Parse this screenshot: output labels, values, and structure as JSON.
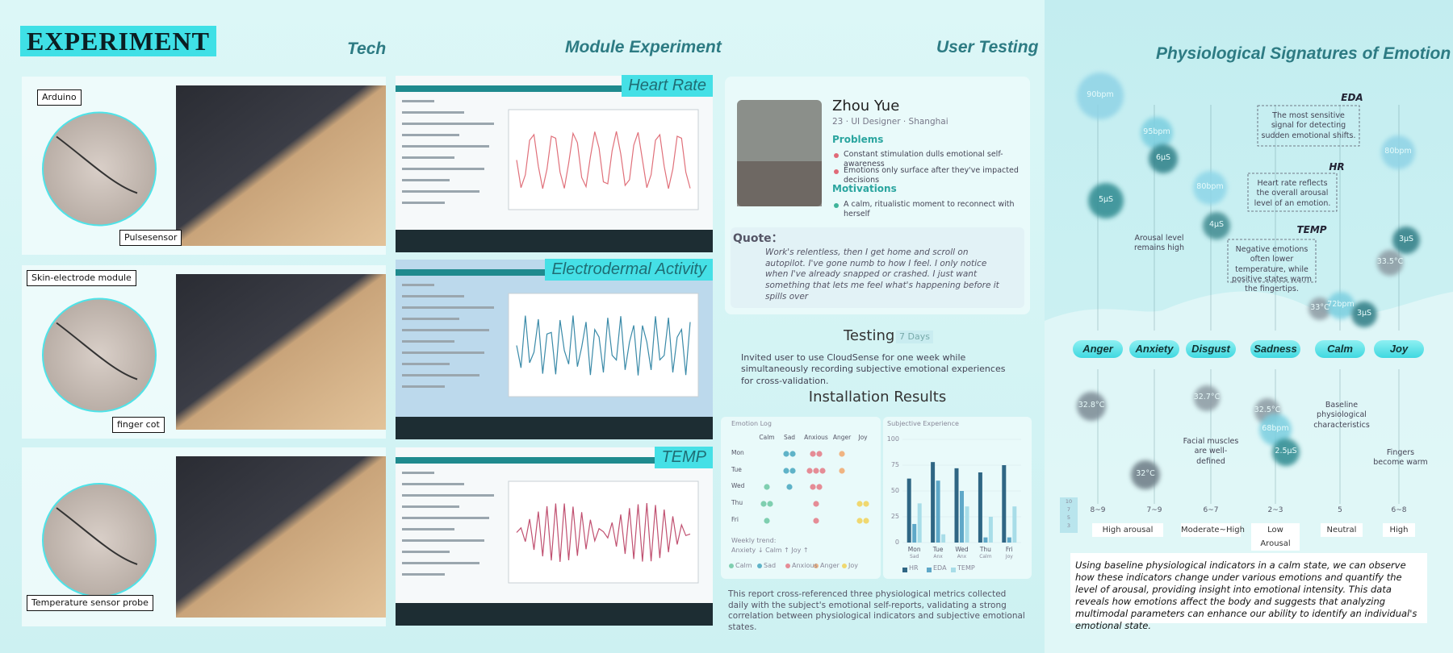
{
  "header": {
    "title": "EXPERIMENT",
    "sections": [
      "Tech",
      "Module Experiment",
      "User Testing",
      "Physiological Signatures of Emotion"
    ]
  },
  "tech": {
    "rows": [
      {
        "labels": [
          "Arduino",
          "Pulsesensor"
        ],
        "module": "Heart Rate"
      },
      {
        "labels": [
          "Skin-electrode module",
          "finger cot"
        ],
        "module": "Electrodermal Activity"
      },
      {
        "labels": [
          "Temperature sensor probe"
        ],
        "module": "TEMP"
      }
    ]
  },
  "user": {
    "name": "Zhou Yue",
    "info": "23 · UI Designer · Shanghai",
    "problems_title": "Problems",
    "problems": [
      "Constant stimulation dulls emotional self-awareness",
      "Emotions only surface after they've impacted decisions"
    ],
    "motivations_title": "Motivations",
    "motivations": [
      "A calm, ritualistic moment to reconnect with herself"
    ],
    "quote_title": "Quote：",
    "quote": "Work's relentless, then I get home and scroll on autopilot. I've gone numb to how I feel. I only notice when I've already snapped or crashed. I just want something that lets me feel what's happening before it spills over"
  },
  "testing": {
    "title": "Testing",
    "duration": "7 Days",
    "description": "Invited user to use CloudSense for one week while simultaneously recording subjective emotional experiences for cross-validation."
  },
  "results": {
    "title": "Installation Results",
    "emotion_log": {
      "title": "Emotion Log",
      "columns": [
        "Calm",
        "Sad",
        "Anxious",
        "Anger",
        "Joy"
      ],
      "colors": [
        "#7fcfb0",
        "#5fb3c8",
        "#e58c96",
        "#f0b482",
        "#f0d870"
      ],
      "rows": [
        "Mon",
        "Tue",
        "Wed",
        "Thu",
        "Fri"
      ],
      "counts": [
        [
          0,
          2,
          2,
          1,
          0
        ],
        [
          0,
          2,
          3,
          1,
          0
        ],
        [
          1,
          1,
          2,
          0,
          0
        ],
        [
          2,
          0,
          1,
          0,
          2
        ],
        [
          1,
          0,
          1,
          0,
          2
        ]
      ],
      "trend_title": "Weekly trend:",
      "trend": "Anxiety ↓ Calm ↑ Joy ↑"
    },
    "subjective": {
      "title": "Subjective Experience",
      "categories": [
        "Mon",
        "Tue",
        "Wed",
        "Thu",
        "Fri"
      ],
      "sublabels": [
        "Sad",
        "Anx",
        "Anx",
        "Calm",
        "Joy"
      ],
      "ylim": [
        0,
        100
      ],
      "yticks": [
        0,
        25,
        50,
        75,
        100
      ],
      "series": [
        {
          "name": "HR",
          "color": "#2f6684",
          "values": [
            62,
            78,
            72,
            68,
            75
          ]
        },
        {
          "name": "EDA",
          "color": "#5fa8c8",
          "values": [
            18,
            60,
            50,
            5,
            5
          ]
        },
        {
          "name": "TEMP",
          "color": "#a8dde8",
          "values": [
            38,
            8,
            35,
            25,
            35
          ]
        }
      ]
    },
    "report": "This report cross-referenced three physiological metrics collected daily with the subject's emotional self-reports, validating a strong correlation between physiological indicators and subjective emotional states."
  },
  "signatures": {
    "bubbles": [
      "90bpm",
      "5μS",
      "95bpm",
      "6μS",
      "80bpm",
      "4μS",
      "80bpm",
      "3μS",
      "33.5°C",
      "33°C",
      "72bpm",
      "3μS",
      "32.8°C",
      "32°C",
      "32.7°C",
      "32.5°C",
      "68bpm",
      "2.5μS"
    ],
    "annotations": [
      {
        "title": "EDA",
        "text": "The most sensitive signal for detecting sudden emotional shifts."
      },
      {
        "title": "HR",
        "text": "Heart rate reflects the overall arousal level of an emotion."
      },
      {
        "title": "TEMP",
        "text": "Negative emotions often lower temperature, while positive states warm the fingertips."
      }
    ],
    "notes": [
      "Arousal level remains high",
      "Facial muscles are well-defined",
      "Baseline physiological characteristics",
      "Fingers become warm"
    ],
    "emotions": [
      {
        "name": "Anger",
        "arousal": "8~9"
      },
      {
        "name": "Anxiety",
        "arousal": "7~9"
      },
      {
        "name": "Disgust",
        "arousal": "6~7"
      },
      {
        "name": "Sadness",
        "arousal": "2~3"
      },
      {
        "name": "Calm",
        "arousal": "5"
      },
      {
        "name": "Joy",
        "arousal": "6~8"
      }
    ],
    "levels": [
      "High arousal",
      "Moderate~High",
      "Low Arousal",
      "Neutral",
      "High"
    ],
    "scale": [
      "10",
      "7",
      "5",
      "3"
    ],
    "summary": "Using baseline physiological indicators in a calm state, we can observe how these indicators change under various emotions and quantify the level of arousal, providing insight into emotional intensity. This data reveals how emotions affect the body and suggests that analyzing multimodal parameters can enhance our ability to identify an individual's emotional state."
  }
}
